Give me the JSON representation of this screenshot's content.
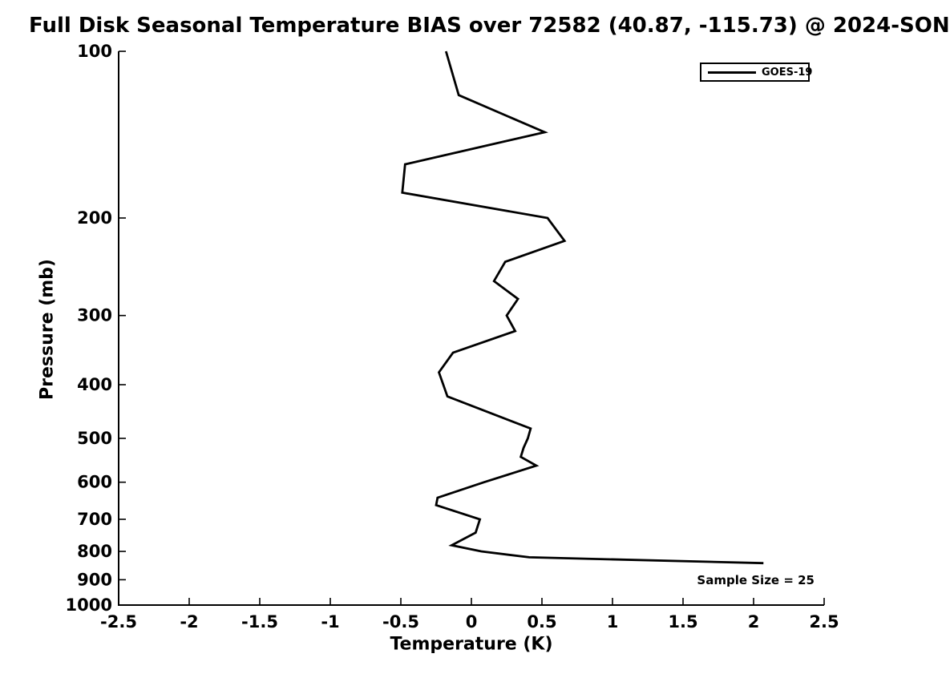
{
  "colors": {
    "background": "#ffffff",
    "axis": "#000000",
    "text": "#000000",
    "series_line": "#000000"
  },
  "chart_data": {
    "type": "line",
    "title": "Full Disk Seasonal Temperature BIAS over 72582 (40.87, -115.73) @ 2024-SON",
    "xlabel": "Temperature (K)",
    "ylabel": "Pressure (mb)",
    "xlim": [
      -2.5,
      2.5
    ],
    "ylim": [
      1000,
      100
    ],
    "yscale": "log",
    "grid": false,
    "xticks": [
      -2.5,
      -2,
      -1.5,
      -1,
      -0.5,
      0,
      0.5,
      1,
      1.5,
      2,
      2.5
    ],
    "xtick_labels": [
      "-2.5",
      "-2",
      "-1.5",
      "-1",
      "-0.5",
      "0",
      "0.5",
      "1",
      "1.5",
      "2",
      "2.5"
    ],
    "yticks": [
      100,
      200,
      300,
      400,
      500,
      600,
      700,
      800,
      900,
      1000
    ],
    "ytick_labels": [
      "100",
      "200",
      "300",
      "400",
      "500",
      "600",
      "700",
      "800",
      "900",
      "1000"
    ],
    "legend": {
      "position": "top-right",
      "entries": [
        {
          "label": "GOES-19",
          "color": "#000000"
        }
      ]
    },
    "annotation": "Sample Size = 25",
    "series": [
      {
        "name": "GOES-19",
        "color": "#000000",
        "pressure_mb": [
          100,
          120,
          140,
          160,
          180,
          200,
          220,
          240,
          260,
          280,
          300,
          320,
          350,
          380,
          420,
          480,
          500,
          520,
          540,
          560,
          600,
          640,
          660,
          700,
          740,
          780,
          800,
          820,
          840
        ],
        "bias_k": [
          -0.18,
          -0.09,
          0.52,
          -0.47,
          -0.49,
          0.54,
          0.66,
          0.24,
          0.16,
          0.33,
          0.25,
          0.31,
          -0.13,
          -0.23,
          -0.17,
          0.42,
          0.4,
          0.37,
          0.35,
          0.46,
          0.09,
          -0.24,
          -0.25,
          0.06,
          0.03,
          -0.14,
          0.07,
          0.41,
          2.07
        ]
      }
    ]
  }
}
